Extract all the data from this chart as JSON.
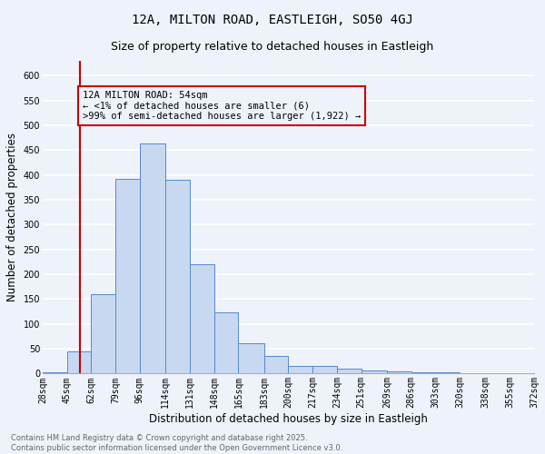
{
  "title": "12A, MILTON ROAD, EASTLEIGH, SO50 4GJ",
  "subtitle": "Size of property relative to detached houses in Eastleigh",
  "xlabel": "Distribution of detached houses by size in Eastleigh",
  "ylabel": "Number of detached properties",
  "bar_edges": [
    28,
    45,
    62,
    79,
    96,
    114,
    131,
    148,
    165,
    183,
    200,
    217,
    234,
    251,
    269,
    286,
    303,
    320,
    338,
    355,
    372
  ],
  "bar_heights": [
    3,
    45,
    160,
    393,
    463,
    390,
    220,
    123,
    62,
    35,
    15,
    15,
    10,
    7,
    5,
    2,
    2,
    1,
    1,
    1
  ],
  "bar_color": "#c8d8f0",
  "bar_edge_color": "#5588cc",
  "vline_x": 54,
  "vline_color": "#cc0000",
  "annotation_line1": "12A MILTON ROAD: 54sqm",
  "annotation_line2": "← <1% of detached houses are smaller (6)",
  "annotation_line3": ">99% of semi-detached houses are larger (1,922) →",
  "annotation_box_color": "#cc0000",
  "annotation_text_color": "#000000",
  "yticks": [
    0,
    50,
    100,
    150,
    200,
    250,
    300,
    350,
    400,
    450,
    500,
    550,
    600
  ],
  "ylim": [
    0,
    630
  ],
  "xlim": [
    28,
    372
  ],
  "tick_labels": [
    "28sqm",
    "45sqm",
    "62sqm",
    "79sqm",
    "96sqm",
    "114sqm",
    "131sqm",
    "148sqm",
    "165sqm",
    "183sqm",
    "200sqm",
    "217sqm",
    "234sqm",
    "251sqm",
    "269sqm",
    "286sqm",
    "303sqm",
    "320sqm",
    "338sqm",
    "355sqm",
    "372sqm"
  ],
  "background_color": "#eef2fa",
  "grid_color": "#ffffff",
  "footer_text": "Contains HM Land Registry data © Crown copyright and database right 2025.\nContains public sector information licensed under the Open Government Licence v3.0.",
  "title_fontsize": 10,
  "subtitle_fontsize": 9,
  "tick_fontsize": 7,
  "ylabel_fontsize": 8.5,
  "xlabel_fontsize": 8.5,
  "footer_fontsize": 6,
  "annot_fontsize": 7.5
}
